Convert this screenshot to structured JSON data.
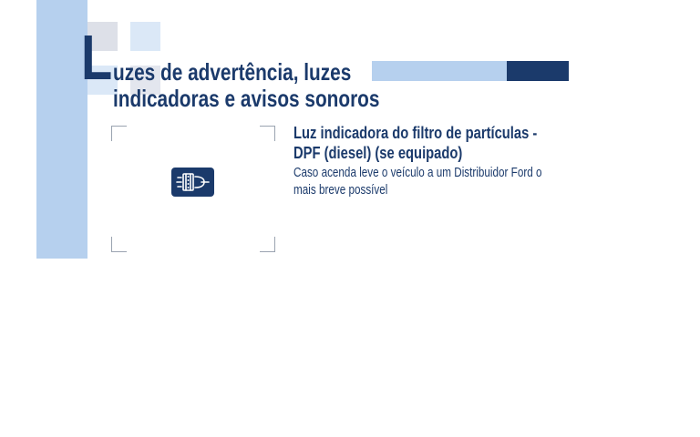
{
  "section_title": {
    "initial": "L",
    "line1": "uzes de advertência, luzes",
    "line2": "indicadoras e avisos sonoros"
  },
  "indicator": {
    "icon": "dpf-filter-icon",
    "heading_line1": "Luz indicadora do filtro de partículas -",
    "heading_line2": "DPF (diesel) (se equipado)",
    "body_line1": "Caso acenda leve o veículo a um Distribuidor Ford o",
    "body_line2": "mais breve possível"
  },
  "colors": {
    "primary": "#1b3a6b",
    "accent_light": "#b6d0ee"
  }
}
